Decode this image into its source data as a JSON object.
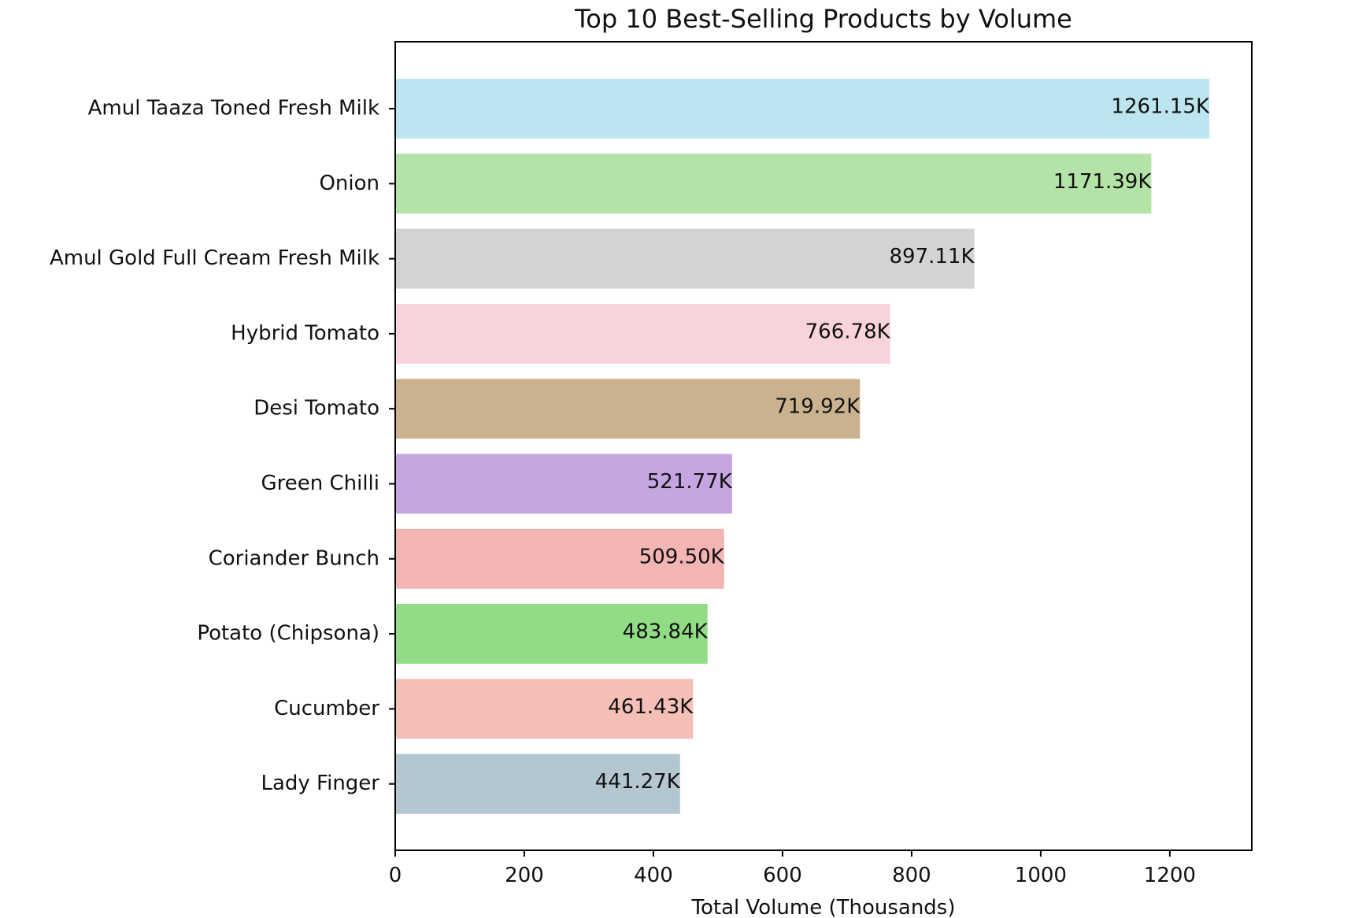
{
  "chart_data": {
    "type": "bar",
    "orientation": "horizontal",
    "title": "Top 10 Best-Selling Products by Volume",
    "xlabel": "Total Volume (Thousands)",
    "ylabel": "",
    "xlim": [
      0,
      1327
    ],
    "xticks": [
      0,
      200,
      400,
      600,
      800,
      1000,
      1200
    ],
    "grid": false,
    "categories": [
      "Amul Taaza Toned Fresh Milk",
      "Onion",
      "Amul Gold Full Cream Fresh Milk",
      "Hybrid Tomato",
      "Desi Tomato",
      "Green Chilli",
      "Coriander Bunch",
      "Potato (Chipsona)",
      "Cucumber",
      "Lady Finger"
    ],
    "values": [
      1261.15,
      1171.39,
      897.11,
      766.78,
      719.92,
      521.77,
      509.5,
      483.84,
      461.43,
      441.27
    ],
    "data_labels": [
      "1261.15K",
      "1171.39K",
      "897.11K",
      "766.78K",
      "719.92K",
      "521.77K",
      "509.50K",
      "483.84K",
      "461.43K",
      "441.27K"
    ],
    "colors": [
      "#bde5ef",
      "#b4e3a8",
      "#d3d3d3",
      "#f8d3dc",
      "#cbb28f",
      "#c6a6e0",
      "#f3b4b4",
      "#91dc84",
      "#f4bfb7",
      "#b4c6d0"
    ]
  }
}
